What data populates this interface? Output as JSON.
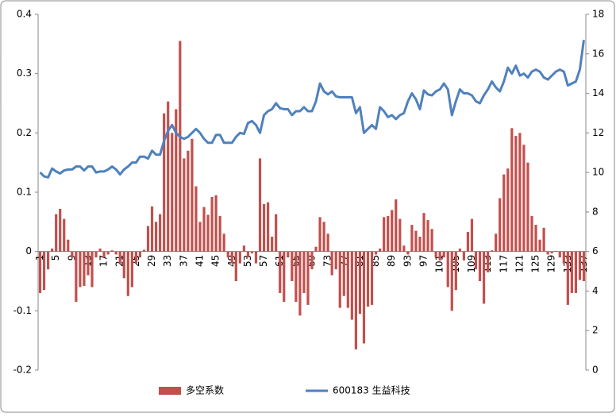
{
  "chart_data": {
    "type": "bar_line",
    "categories": [
      "1",
      null,
      null,
      null,
      "5",
      null,
      null,
      null,
      "9",
      null,
      null,
      null,
      "13",
      null,
      null,
      null,
      "17",
      null,
      null,
      null,
      "21",
      null,
      null,
      null,
      "25",
      null,
      null,
      null,
      "29",
      null,
      null,
      null,
      "33",
      null,
      null,
      null,
      "37",
      null,
      null,
      null,
      "41",
      null,
      null,
      null,
      "45",
      null,
      null,
      null,
      "49",
      null,
      null,
      null,
      "53",
      null,
      null,
      null,
      "57",
      null,
      null,
      null,
      "61",
      null,
      null,
      null,
      "65",
      null,
      null,
      null,
      "69",
      null,
      null,
      null,
      "73",
      null,
      null,
      null,
      "77",
      null,
      null,
      null,
      "81",
      null,
      null,
      null,
      "85",
      null,
      null,
      null,
      "89",
      null,
      null,
      null,
      "93",
      null,
      null,
      null,
      "97",
      null,
      null,
      null,
      "101",
      null,
      null,
      null,
      "105",
      null,
      null,
      null,
      "109",
      null,
      null,
      null,
      "113",
      null,
      null,
      null,
      "117",
      null,
      null,
      null,
      "121",
      null,
      null,
      null,
      "125",
      null,
      null,
      null,
      "129",
      null,
      null,
      null,
      "133",
      null,
      null,
      null,
      "137"
    ],
    "series": [
      {
        "name": "多空系数",
        "color": "#c0504d",
        "kind": "bar",
        "values": [
          -0.07,
          -0.065,
          -0.03,
          0.005,
          0.063,
          0.072,
          0.055,
          0.02,
          -0.01,
          -0.085,
          -0.06,
          -0.058,
          -0.04,
          -0.06,
          -0.01,
          0.005,
          -0.01,
          -0.005,
          0.002,
          -0.005,
          -0.02,
          -0.045,
          -0.075,
          -0.06,
          -0.02,
          -0.01,
          0.003,
          0.043,
          0.076,
          0.05,
          0.063,
          0.233,
          0.253,
          0.2,
          0.24,
          0.355,
          0.157,
          0.17,
          0.19,
          0.11,
          0.05,
          0.075,
          0.062,
          0.092,
          0.095,
          0.06,
          0.03,
          -0.01,
          -0.02,
          -0.05,
          -0.02,
          0.01,
          -0.01,
          -0.003,
          -0.02,
          0.157,
          0.08,
          0.083,
          0.025,
          0.063,
          -0.07,
          -0.085,
          -0.01,
          -0.05,
          -0.085,
          -0.108,
          -0.07,
          -0.09,
          -0.03,
          0.008,
          0.058,
          0.05,
          0.03,
          -0.04,
          -0.03,
          -0.095,
          -0.075,
          -0.095,
          -0.115,
          -0.165,
          -0.105,
          -0.155,
          -0.093,
          -0.09,
          -0.005,
          0.005,
          0.058,
          0.06,
          0.07,
          0.088,
          0.055,
          0.01,
          -0.005,
          0.045,
          0.035,
          0.025,
          0.065,
          0.053,
          0.038,
          -0.01,
          -0.015,
          -0.01,
          -0.06,
          -0.1,
          -0.065,
          0.005,
          -0.015,
          0.033,
          0.055,
          -0.03,
          -0.05,
          -0.088,
          -0.035,
          0.002,
          0.03,
          0.09,
          0.13,
          0.14,
          0.208,
          0.195,
          0.2,
          0.18,
          0.15,
          0.06,
          0.045,
          0.02,
          0.04,
          -0.005,
          -0.003,
          0.001,
          -0.01,
          -0.02,
          -0.09,
          -0.07,
          -0.07,
          -0.048,
          -0.05
        ]
      },
      {
        "name": "600183 生益科技",
        "color": "#4f81bd",
        "kind": "line",
        "axis": "y2",
        "values": [
          10,
          9.8,
          9.75,
          10.2,
          10.05,
          9.95,
          10.1,
          10.15,
          10.15,
          10.3,
          10.3,
          10.1,
          10.3,
          10.3,
          10,
          10.05,
          10.05,
          10.15,
          10.3,
          10.15,
          9.9,
          10.15,
          10.3,
          10.5,
          10.5,
          10.8,
          10.8,
          10.7,
          11.1,
          10.9,
          10.9,
          11.6,
          12.1,
          12.4,
          12,
          11.8,
          11.7,
          11.8,
          12,
          12.2,
          12,
          11.7,
          11.5,
          11.5,
          11.9,
          11.9,
          11.5,
          11.5,
          11.5,
          11.8,
          12,
          11.95,
          12.5,
          12.6,
          12.4,
          12,
          12.9,
          13.1,
          13.2,
          13.5,
          13.25,
          13.2,
          13.2,
          12.9,
          13.1,
          13.1,
          13.3,
          13.1,
          13.1,
          13.6,
          14.5,
          14.1,
          13.95,
          14.1,
          13.85,
          13.8,
          13.8,
          13.8,
          13.8,
          13,
          13.3,
          12,
          12.2,
          12.4,
          12.2,
          13.3,
          13.1,
          12.8,
          12.9,
          12.7,
          12.9,
          13,
          13.6,
          14,
          13.7,
          13.2,
          14.15,
          13.95,
          13.9,
          14.1,
          14.2,
          14.5,
          14.2,
          12.9,
          13.6,
          14.2,
          14,
          14,
          13.9,
          13.6,
          13.5,
          13.9,
          14.2,
          14.6,
          14.3,
          14.1,
          14.6,
          15.3,
          15,
          15.4,
          14.9,
          15,
          14.8,
          15.1,
          15.2,
          15.1,
          14.8,
          14.7,
          14.9,
          15.1,
          15.2,
          15.1,
          14.4,
          14.5,
          14.6,
          15.2,
          16.7
        ]
      }
    ],
    "ylim": [
      -0.2,
      0.4
    ],
    "yticks": [
      -0.2,
      -0.1,
      0,
      0.1,
      0.2,
      0.3,
      0.4
    ],
    "y2lim": [
      0,
      18
    ],
    "y2ticks": [
      0,
      2,
      4,
      6,
      8,
      10,
      12,
      14,
      16,
      18
    ],
    "grid": false,
    "legend": "bottom"
  }
}
